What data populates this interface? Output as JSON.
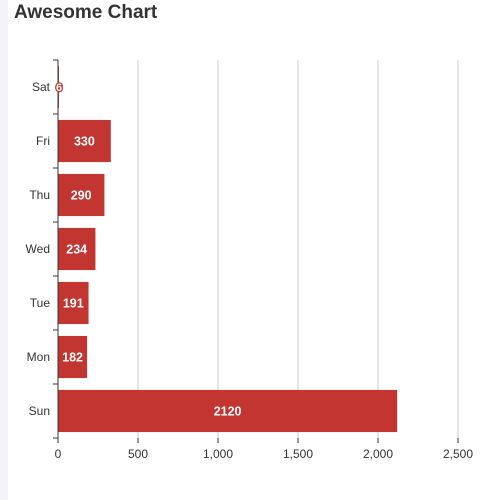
{
  "chart_data": {
    "type": "bar",
    "orientation": "horizontal",
    "title": "Awesome Chart",
    "categories": [
      "Sun",
      "Mon",
      "Tue",
      "Wed",
      "Thu",
      "Fri",
      "Sat"
    ],
    "values": [
      2120,
      182,
      191,
      234,
      290,
      330,
      6
    ],
    "xlim": [
      0,
      2500
    ],
    "xticks": [
      0,
      500,
      1000,
      1500,
      2000,
      2500
    ],
    "xtick_labels": [
      "0",
      "500",
      "1,000",
      "1,500",
      "2,000",
      "2,500"
    ],
    "grid": true,
    "bar_color": "#c23531",
    "data_labels": true
  }
}
